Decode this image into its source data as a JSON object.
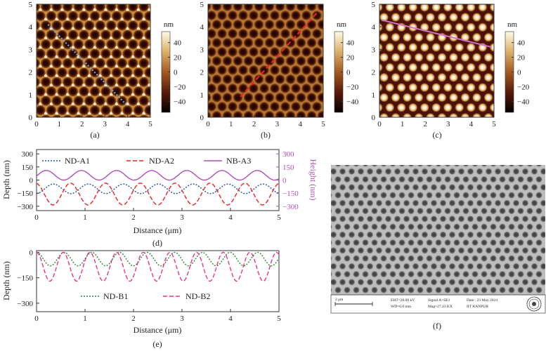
{
  "chart_data": [
    {
      "panel": "(a)",
      "type": "heatmap",
      "title": "",
      "x_ticks": [
        "0",
        "1",
        "2",
        "3",
        "4",
        "5"
      ],
      "y_ticks": [
        "0",
        "1",
        "2",
        "3",
        "4",
        "5"
      ],
      "xlim": [
        0,
        5
      ],
      "ylim": [
        0,
        5
      ],
      "colorbar": {
        "unit": "nm",
        "ticks": [
          "40",
          "20",
          "0",
          "−20",
          "−40"
        ],
        "range": [
          -55,
          55
        ]
      },
      "line_profile": {
        "name": "ND-A1",
        "color": "#6fa8dc",
        "style": "dotted",
        "from": [
          0.5,
          4.1
        ],
        "to": [
          4.0,
          0.5
        ]
      }
    },
    {
      "panel": "(b)",
      "type": "heatmap",
      "title": "",
      "x_ticks": [
        "0",
        "1",
        "2",
        "3",
        "4",
        "5"
      ],
      "y_ticks": [
        "0",
        "1",
        "2",
        "3",
        "4",
        "5"
      ],
      "xlim": [
        0,
        5
      ],
      "ylim": [
        0,
        5
      ],
      "colorbar": {
        "unit": "nm",
        "ticks": [
          "40",
          "20",
          "0",
          "−20",
          "−40"
        ],
        "range": [
          -55,
          55
        ]
      },
      "line_profile": {
        "name": "ND-A2",
        "color": "#ee2222",
        "style": "dashed",
        "from": [
          1.4,
          0.9
        ],
        "to": [
          4.8,
          4.7
        ]
      }
    },
    {
      "panel": "(c)",
      "type": "heatmap",
      "title": "",
      "x_ticks": [
        "0",
        "1",
        "2",
        "3",
        "4",
        "5"
      ],
      "y_ticks": [
        "0",
        "1",
        "2",
        "3",
        "4",
        "5"
      ],
      "xlim": [
        0,
        5
      ],
      "ylim": [
        0,
        5
      ],
      "colorbar": {
        "unit": "nm",
        "ticks": [
          "40",
          "20",
          "0",
          "−20",
          "−40"
        ],
        "range": [
          -55,
          55
        ]
      },
      "line_profile": {
        "name": "NB-A3",
        "color": "#d070c8",
        "style": "solid",
        "from": [
          0.1,
          4.3
        ],
        "to": [
          4.9,
          3.1
        ]
      }
    },
    {
      "panel": "(d)",
      "type": "line",
      "xlabel": "Distance (μm)",
      "ylabel": "Depth (nm)",
      "ylabel_right": "Height (nm)",
      "xlim": [
        0,
        5
      ],
      "ylim": [
        -350,
        350
      ],
      "x_ticks": [
        "0",
        "1",
        "2",
        "3",
        "4",
        "5"
      ],
      "y_ticks_left": [
        "300",
        "150",
        "0",
        "−150",
        "−300"
      ],
      "y_tick_values": [
        300,
        150,
        0,
        -150,
        -300
      ],
      "y_ticks_right": [
        "300",
        "150",
        "0",
        "−150",
        "−300"
      ],
      "series": [
        {
          "name": "ND-A1",
          "color": "#1f4fa8",
          "style": "dotted",
          "center": -100,
          "amp": 55,
          "period": 0.72,
          "phase": 0.35
        },
        {
          "name": "ND-A2",
          "color": "#ee2222",
          "style": "dashed",
          "center": -160,
          "amp": 125,
          "period": 0.72,
          "phase": 0.7
        },
        {
          "name": "NB-A3",
          "color": "#b04fb8",
          "style": "solid",
          "center": 55,
          "amp": 55,
          "period": 0.725,
          "phase": 0.2
        }
      ]
    },
    {
      "panel": "(e)",
      "type": "line",
      "xlabel": "Distance (μm)",
      "ylabel": "Depth (nm)",
      "xlim": [
        0,
        5
      ],
      "ylim": [
        -350,
        10
      ],
      "x_ticks": [
        "0",
        "1",
        "2",
        "3",
        "4",
        "5"
      ],
      "y_ticks_left": [
        "0",
        "−150",
        "−300"
      ],
      "y_tick_values": [
        0,
        -150,
        -300
      ],
      "series": [
        {
          "name": "ND-B1",
          "color": "#2a8a2a",
          "style": "dotted",
          "center": -40,
          "amp": 40,
          "period": 0.57,
          "phase": 0.0
        },
        {
          "name": "ND-B2",
          "color": "#e8338a",
          "style": "dashed",
          "center": -85,
          "amp": 85,
          "period": 0.55,
          "phase": 0.0
        }
      ]
    }
  ],
  "sem": {
    "panel": "(f)",
    "scale_bar": "2 μm",
    "eht": "EHT=20.00 kV",
    "wd": "WD=6.0 mm",
    "signal": "Signal A=SE1",
    "mag": "Mag=27.43 KX",
    "date": "Date : 23 May 2024",
    "institute": "IIT KANPUR"
  },
  "colors": {
    "afm_dark": "#1a0505",
    "afm_light": "#fff8dc"
  }
}
